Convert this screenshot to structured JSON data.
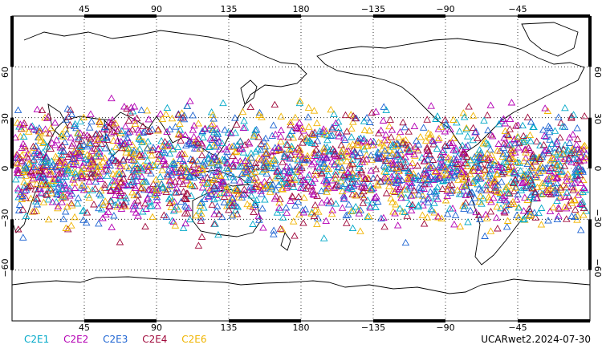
{
  "map": {
    "lon_labels_top": [
      "45",
      "90",
      "135",
      "180",
      "−135",
      "−90",
      "−45"
    ],
    "lon_labels_bottom": [
      "45",
      "90",
      "135",
      "180",
      "−135",
      "−90",
      "−45"
    ],
    "lat_labels_left": [
      "60",
      "30",
      "0",
      "−30",
      "−60"
    ],
    "lat_labels_right": [
      "60",
      "30",
      "0",
      "−30",
      "−60"
    ],
    "lon_tick_values": [
      45,
      90,
      135,
      180,
      225,
      270,
      315
    ],
    "lat_tick_values": [
      60,
      30,
      0,
      -30,
      -60
    ],
    "lon_range": [
      0,
      360
    ],
    "lat_range": [
      -90,
      90
    ],
    "grid": "dotted",
    "markers": "open triangles (occultation locations)"
  },
  "legend": [
    {
      "label": "C2E1",
      "color": "#00a8c8"
    },
    {
      "label": "C2E2",
      "color": "#b400b4"
    },
    {
      "label": "C2E3",
      "color": "#1e64d2"
    },
    {
      "label": "C2E4",
      "color": "#a00a3c"
    },
    {
      "label": "C2E6",
      "color": "#f0b400"
    }
  ],
  "footer": {
    "source": "UCARwet2.2024-07-30"
  }
}
